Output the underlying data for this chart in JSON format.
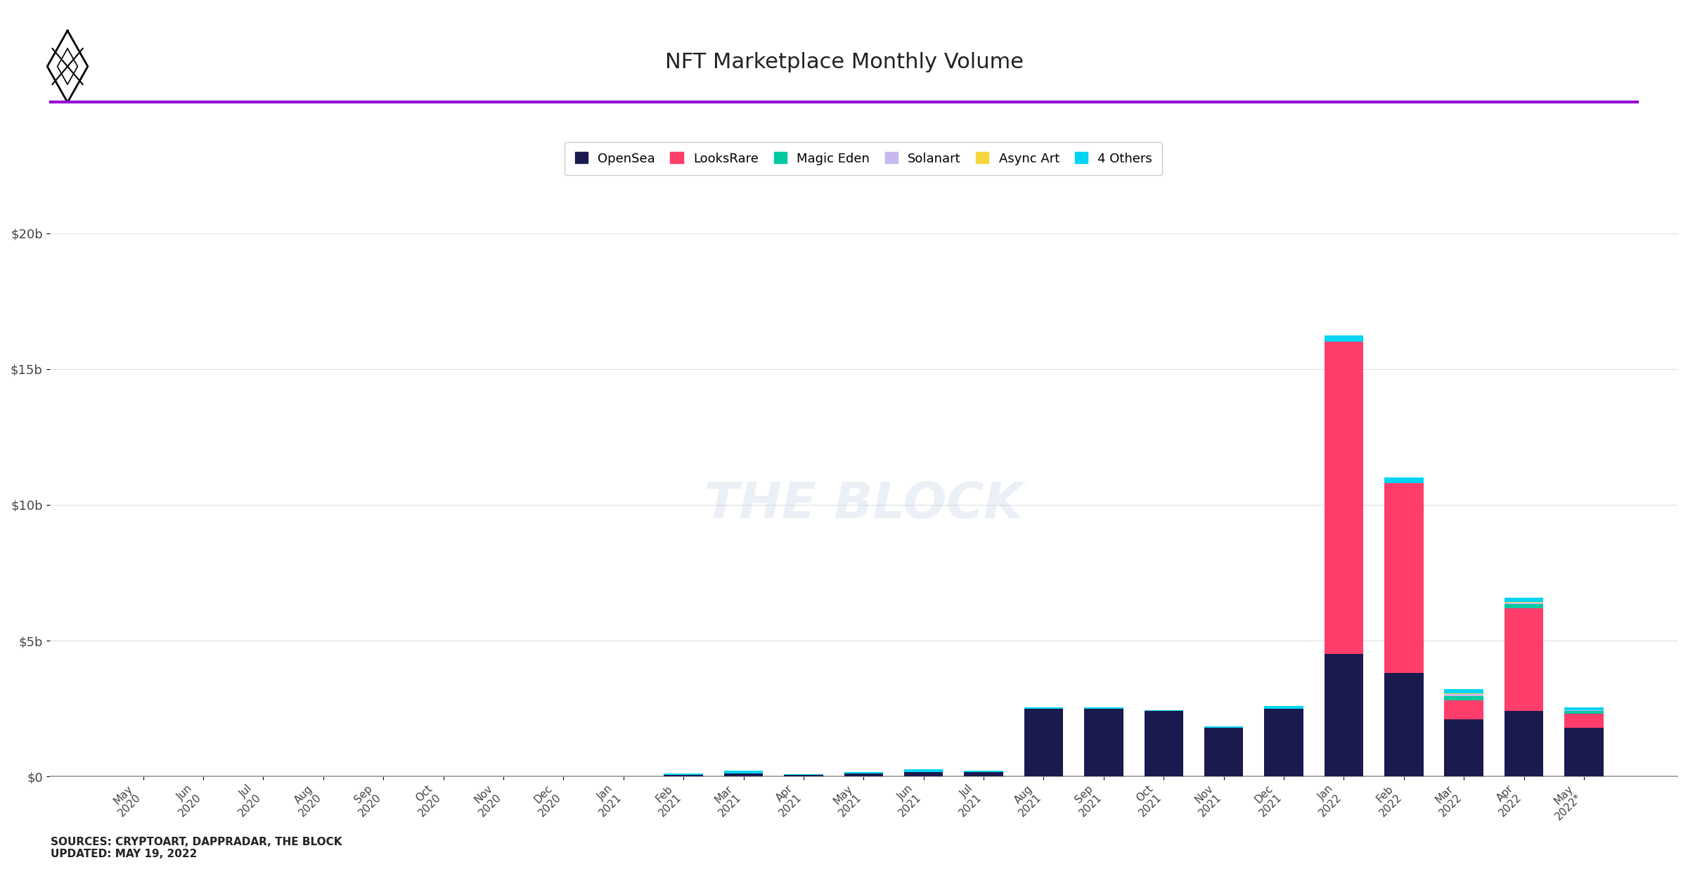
{
  "title": "NFT Marketplace Monthly Volume",
  "months": [
    "May\n2020",
    "Jun\n2020",
    "Jul\n2020",
    "Aug\n2020",
    "Sep\n2020",
    "Oct\n2020",
    "Nov\n2020",
    "Dec\n2020",
    "Jan\n2021",
    "Feb\n2021",
    "Mar\n2021",
    "Apr\n2021",
    "May\n2021",
    "Jun\n2021",
    "Jul\n2021",
    "Aug\n2021",
    "Sep\n2021",
    "Oct\n2021",
    "Nov\n2021",
    "Dec\n2021",
    "Jan\n2022",
    "Feb\n2022",
    "Mar\n2022",
    "Apr\n2022",
    "May\n2022*"
  ],
  "series": {
    "OpenSea": [
      0.005,
      0.005,
      0.005,
      0.005,
      0.005,
      0.005,
      0.005,
      0.01,
      0.01,
      0.05,
      0.1,
      0.05,
      0.1,
      0.15,
      0.15,
      2.5,
      2.5,
      2.4,
      1.8,
      2.5,
      4.5,
      3.8,
      2.1,
      2.4,
      1.8
    ],
    "LooksRare": [
      0,
      0,
      0,
      0,
      0,
      0,
      0,
      0,
      0,
      0,
      0,
      0,
      0,
      0,
      0,
      0,
      0,
      0,
      0,
      0,
      11.5,
      7.0,
      0.7,
      3.8,
      0.5
    ],
    "Magic Eden": [
      0,
      0,
      0,
      0,
      0,
      0,
      0,
      0,
      0,
      0,
      0,
      0,
      0,
      0,
      0,
      0,
      0,
      0,
      0,
      0,
      0,
      0,
      0.15,
      0.15,
      0.1
    ],
    "Solanart": [
      0,
      0,
      0,
      0,
      0,
      0,
      0,
      0,
      0,
      0,
      0,
      0,
      0,
      0,
      0,
      0,
      0,
      0,
      0,
      0,
      0,
      0,
      0.08,
      0.05,
      0.03
    ],
    "Async Art": [
      0,
      0,
      0,
      0,
      0,
      0,
      0,
      0,
      0,
      0,
      0,
      0,
      0,
      0,
      0,
      0,
      0,
      0,
      0,
      0,
      0,
      0,
      0.03,
      0.03,
      0.02
    ],
    "4 Others": [
      0,
      0,
      0,
      0,
      0,
      0,
      0,
      0.005,
      0,
      0.05,
      0.1,
      0.02,
      0.05,
      0.1,
      0.05,
      0.05,
      0.05,
      0.05,
      0.05,
      0.1,
      0.25,
      0.2,
      0.15,
      0.15,
      0.1
    ]
  },
  "colors": {
    "OpenSea": "#1a1a4e",
    "LooksRare": "#ff3d6b",
    "Magic Eden": "#00c9a0",
    "Solanart": "#c8b8f0",
    "Async Art": "#f5d63d",
    "4 Others": "#00d4f5"
  },
  "ylim": [
    0,
    20
  ],
  "yticks": [
    0,
    5000000000,
    10000000000,
    15000000000,
    20000000000
  ],
  "ytick_labels": [
    "$0",
    "$5b",
    "$10b",
    "$15b",
    "$20b"
  ],
  "purple_line_color": "#9400d3",
  "watermark": "THE BLOCK",
  "source_text": "SOURCES: CRYPTOART, DAPPRADAR, THE BLOCK\nUPDATED: MAY 19, 2022",
  "background_color": "#ffffff",
  "grid_color": "#e0e0e0"
}
